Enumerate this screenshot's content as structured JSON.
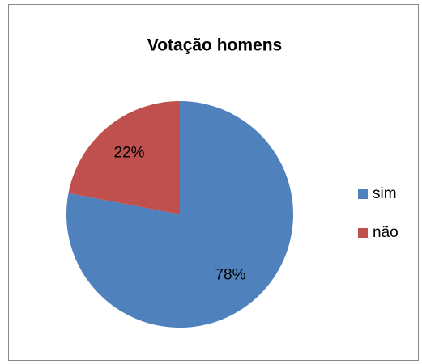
{
  "chart_data": {
    "type": "pie",
    "title": "Votação homens",
    "categories": [
      "sim",
      "não"
    ],
    "values": [
      78,
      22
    ],
    "value_labels": [
      "78%",
      "22%"
    ],
    "colors": [
      "#4f81bd",
      "#c0504d"
    ],
    "legend": "right"
  }
}
